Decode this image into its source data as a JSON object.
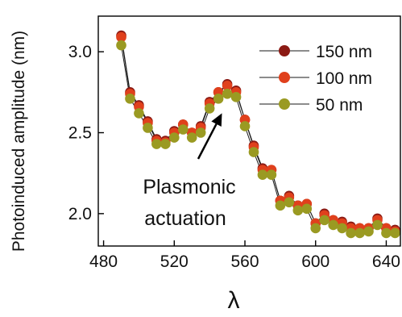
{
  "chart_data": {
    "type": "line",
    "xlabel": "λ",
    "ylabel": "Photoinduced amplitude (nm)",
    "xlim": [
      477,
      648
    ],
    "ylim": [
      1.8,
      3.22
    ],
    "xticks": [
      480,
      520,
      560,
      600,
      640
    ],
    "yticks": [
      2.0,
      2.5,
      3.0
    ],
    "ytick_labels": [
      "2.0",
      "2.5",
      "3.0"
    ],
    "legend_position": "top-right",
    "annotation": {
      "lines": [
        "Plasmonic",
        "actuation"
      ],
      "points_to": [
        547,
        2.62
      ]
    },
    "x": [
      490,
      495,
      500,
      505,
      510,
      515,
      520,
      525,
      530,
      535,
      540,
      545,
      550,
      555,
      560,
      565,
      570,
      575,
      580,
      585,
      590,
      595,
      600,
      605,
      610,
      615,
      620,
      625,
      630,
      635,
      640,
      645
    ],
    "series": [
      {
        "name": "150 nm",
        "color": "#8b1a14",
        "values": [
          3.1,
          2.75,
          2.67,
          2.57,
          2.46,
          2.45,
          2.51,
          2.55,
          2.5,
          2.54,
          2.69,
          2.75,
          2.8,
          2.76,
          2.58,
          2.42,
          2.28,
          2.27,
          2.08,
          2.11,
          2.05,
          2.06,
          1.94,
          2.0,
          1.96,
          1.95,
          1.92,
          1.91,
          1.91,
          1.97,
          1.91,
          1.9
        ]
      },
      {
        "name": "100 nm",
        "color": "#e0401c",
        "values": [
          3.09,
          2.74,
          2.66,
          2.56,
          2.45,
          2.44,
          2.5,
          2.55,
          2.5,
          2.53,
          2.68,
          2.75,
          2.79,
          2.75,
          2.58,
          2.41,
          2.27,
          2.27,
          2.08,
          2.1,
          2.05,
          2.06,
          1.94,
          1.99,
          1.96,
          1.94,
          1.91,
          1.91,
          1.91,
          1.96,
          1.91,
          1.89
        ]
      },
      {
        "name": "50 nm",
        "color": "#9a9a22",
        "values": [
          3.04,
          2.71,
          2.62,
          2.53,
          2.43,
          2.43,
          2.47,
          2.52,
          2.47,
          2.5,
          2.65,
          2.71,
          2.74,
          2.72,
          2.54,
          2.38,
          2.24,
          2.24,
          2.05,
          2.07,
          2.02,
          2.03,
          1.91,
          1.96,
          1.93,
          1.91,
          1.88,
          1.88,
          1.89,
          1.93,
          1.88,
          1.88
        ]
      }
    ]
  }
}
